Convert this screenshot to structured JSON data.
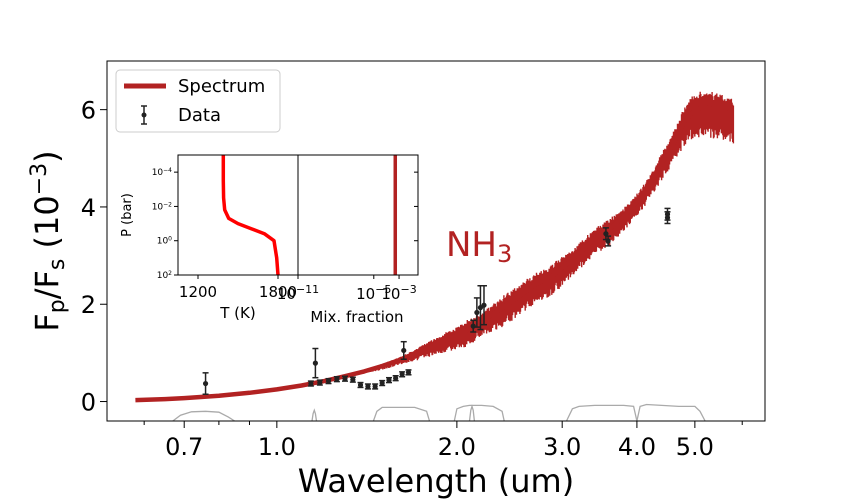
{
  "chart_data": {
    "type": "line",
    "main": {
      "xlabel": "Wavelength  (um)",
      "ylabel_main": "F",
      "ylabel_sub1": "p",
      "ylabel_mid": "/F",
      "ylabel_sub2": "s",
      "ylabel_open": " (10",
      "ylabel_sup": "−3",
      "ylabel_close": ")",
      "xscale": "log",
      "xlim": [
        0.52,
        6.55
      ],
      "ylim": [
        -0.4,
        7.0
      ],
      "xticks": [
        {
          "value": 0.7,
          "label": "0.7"
        },
        {
          "value": 1.0,
          "label": "1.0"
        },
        {
          "value": 2.0,
          "label": "2.0"
        },
        {
          "value": 3.0,
          "label": "3.0"
        },
        {
          "value": 4.0,
          "label": "4.0"
        },
        {
          "value": 5.0,
          "label": "5.0"
        }
      ],
      "yticks": [
        {
          "value": 0,
          "label": "0"
        },
        {
          "value": 2,
          "label": "2"
        },
        {
          "value": 4,
          "label": "4"
        },
        {
          "value": 6,
          "label": "6"
        }
      ],
      "annotation_main": "NH",
      "annotation_sub": "3",
      "legend": [
        {
          "label": "Spectrum",
          "type": "line",
          "color": "#b22222"
        },
        {
          "label": "Data",
          "type": "errorbar",
          "color": "#222222"
        }
      ],
      "spectrum": {
        "name": "Spectrum",
        "color": "#b22222",
        "x": [
          0.58,
          0.65,
          0.7,
          0.8,
          0.9,
          1.0,
          1.1,
          1.2,
          1.3,
          1.4,
          1.5,
          1.6,
          1.7,
          1.8,
          1.9,
          2.0,
          2.1,
          2.2,
          2.3,
          2.4,
          2.5,
          2.6,
          2.7,
          2.8,
          2.9,
          3.0,
          3.1,
          3.2,
          3.3,
          3.4,
          3.6,
          3.8,
          4.0,
          4.2,
          4.4,
          4.6,
          4.8,
          5.0,
          5.2,
          5.4,
          5.6,
          5.8
        ],
        "y": [
          0.03,
          0.05,
          0.07,
          0.12,
          0.18,
          0.25,
          0.33,
          0.42,
          0.52,
          0.62,
          0.73,
          0.85,
          0.98,
          1.12,
          1.25,
          1.35,
          1.5,
          1.65,
          1.8,
          1.95,
          2.1,
          2.25,
          2.4,
          2.5,
          2.6,
          2.75,
          2.9,
          3.05,
          3.2,
          3.35,
          3.55,
          3.8,
          4.1,
          4.45,
          4.9,
          5.3,
          5.75,
          6.0,
          6.05,
          6.0,
          5.95,
          5.9
        ],
        "noise": [
          0.0,
          0.0,
          0.0,
          0.0,
          0.0,
          0.0,
          0.0,
          0.0,
          0.0,
          0.05,
          0.08,
          0.1,
          0.15,
          0.2,
          0.25,
          0.3,
          0.35,
          0.3,
          0.35,
          0.4,
          0.4,
          0.4,
          0.4,
          0.4,
          0.4,
          0.4,
          0.35,
          0.35,
          0.35,
          0.35,
          0.35,
          0.3,
          0.3,
          0.3,
          0.35,
          0.4,
          0.5,
          0.6,
          0.6,
          0.6,
          0.6,
          0.6
        ]
      },
      "data": {
        "name": "Data",
        "color": "#222222",
        "x": [
          0.76,
          1.16,
          1.14,
          1.18,
          1.22,
          1.26,
          1.3,
          1.34,
          1.38,
          1.42,
          1.46,
          1.5,
          1.54,
          1.58,
          1.62,
          1.66,
          1.63,
          2.13,
          2.16,
          2.19,
          2.22,
          3.55,
          3.58,
          4.5,
          4.5
        ],
        "y": [
          0.37,
          0.79,
          0.37,
          0.39,
          0.42,
          0.46,
          0.47,
          0.45,
          0.34,
          0.31,
          0.31,
          0.38,
          0.44,
          0.48,
          0.56,
          0.6,
          1.05,
          1.55,
          1.83,
          1.93,
          1.98,
          3.45,
          3.3,
          3.78,
          3.85
        ],
        "err": [
          0.22,
          0.3,
          0.05,
          0.05,
          0.05,
          0.05,
          0.05,
          0.05,
          0.05,
          0.05,
          0.05,
          0.05,
          0.05,
          0.05,
          0.05,
          0.05,
          0.18,
          0.12,
          0.3,
          0.45,
          0.4,
          0.12,
          0.1,
          0.12,
          0.12
        ]
      },
      "filters": {
        "name": "",
        "color": "#aaaaaa",
        "segments": [
          {
            "x": [
              0.67,
              0.69,
              0.72,
              0.76,
              0.8,
              0.83,
              0.85
            ],
            "y": [
              0.0,
              0.12,
              0.19,
              0.2,
              0.18,
              0.08,
              0.0
            ]
          },
          {
            "x": [
              1.145,
              1.15,
              1.155,
              1.16,
              1.165
            ],
            "y": [
              0.0,
              0.15,
              0.22,
              0.15,
              0.0
            ]
          },
          {
            "x": [
              1.45,
              1.47,
              1.5,
              1.6,
              1.7,
              1.78,
              1.8
            ],
            "y": [
              0.0,
              0.2,
              0.28,
              0.28,
              0.28,
              0.2,
              0.0
            ]
          },
          {
            "x": [
              1.98,
              2.0,
              2.05,
              2.1,
              2.2,
              2.3,
              2.38,
              2.4
            ],
            "y": [
              0.0,
              0.25,
              0.3,
              0.32,
              0.32,
              0.3,
              0.2,
              0.0
            ]
          },
          {
            "x": [
              2.1,
              2.11,
              2.12,
              2.13,
              2.14
            ],
            "y": [
              0.0,
              0.22,
              0.3,
              0.22,
              0.0
            ]
          },
          {
            "x": [
              3.05,
              3.12,
              3.2,
              3.4,
              3.6,
              3.8,
              3.95,
              4.0
            ],
            "y": [
              0.0,
              0.25,
              0.3,
              0.32,
              0.32,
              0.32,
              0.3,
              0.0
            ]
          },
          {
            "x": [
              4.0,
              4.05,
              4.15,
              4.4,
              4.7,
              5.0,
              5.1,
              5.2
            ],
            "y": [
              0.0,
              0.3,
              0.34,
              0.32,
              0.3,
              0.3,
              0.2,
              0.0
            ]
          }
        ]
      }
    },
    "inset_tp": {
      "xlabel": "T (K)",
      "ylabel": "P (bar)",
      "xlim": [
        1050,
        1950
      ],
      "ylog_lim": [
        -5,
        2
      ],
      "xticks": [
        {
          "value": 1200,
          "label": "1200"
        },
        {
          "value": 1800,
          "label": "1800"
        }
      ],
      "yticks": [
        {
          "value": -4,
          "base": "10",
          "exp": "−4"
        },
        {
          "value": -2,
          "base": "10",
          "exp": "−2"
        },
        {
          "value": 0,
          "base": "10",
          "exp": "0"
        },
        {
          "value": 2,
          "base": "10",
          "exp": "2"
        }
      ],
      "profile": {
        "color": "#ff0000",
        "T": [
          1390,
          1390,
          1392,
          1400,
          1430,
          1500,
          1600,
          1700,
          1770,
          1790,
          1800
        ],
        "logP": [
          -5,
          -3.5,
          -2.5,
          -1.8,
          -1.3,
          -1.0,
          -0.7,
          -0.4,
          0,
          1,
          2
        ]
      }
    },
    "inset_mix": {
      "xlabel": "Mix. fraction",
      "xlog_lim": [
        -11,
        -1.5
      ],
      "xticks": [
        {
          "value": -11,
          "base": "10",
          "exp": "−11"
        },
        {
          "value": -5,
          "base": "10",
          "exp": "−5"
        },
        {
          "value": -3,
          "base": "10",
          "exp": "−3"
        }
      ],
      "profile": {
        "color": "#b22222",
        "logX": -3.3
      }
    }
  }
}
